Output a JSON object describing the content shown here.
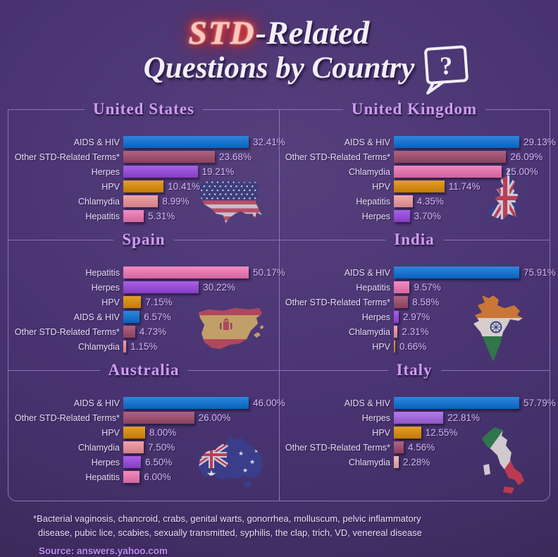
{
  "title": {
    "std": "STD",
    "related": "-Related",
    "line2": "Questions by Country",
    "bubble": "?"
  },
  "footnote": "*Bacterial vaginosis, chancroid, crabs, genital warts, gonorrhea, molluscum, pelvic inflammatory disease, pubic lice, scabies, sexually transmitted, syphilis, the clap, trich, VD, venereal disease",
  "source": "Source: answers.yahoo.com",
  "accent_colors": {
    "background": "#45306f",
    "panel_border": "#8f72bd",
    "panel_title": "#d09cf2",
    "bar_label": "#e9dcf7",
    "bar_value": "#d2b7f2",
    "neon_title": "#ff3b28",
    "source_text": "#bf8df4"
  },
  "chart_data": [
    {
      "type": "bar",
      "orientation": "horizontal",
      "title": "United States",
      "map": "usa",
      "categories": [
        "AIDS & HIV",
        "Other STD-Related Terms*",
        "Herpes",
        "HPV",
        "Chlamydia",
        "Hepatitis"
      ],
      "values": [
        32.41,
        23.68,
        19.21,
        10.41,
        8.99,
        5.31
      ],
      "value_labels": [
        "32.41%",
        "23.68%",
        "19.21%",
        "10.41%",
        "8.99%",
        "5.31%"
      ],
      "colors": [
        "#0b72d9",
        "#a14a6c",
        "#9a46e2",
        "#e08e07",
        "#f2939c",
        "#f378b6"
      ],
      "xlim": [
        0,
        32.41
      ]
    },
    {
      "type": "bar",
      "orientation": "horizontal",
      "title": "United Kingdom",
      "map": "uk",
      "categories": [
        "AIDS & HIV",
        "Other STD-Related Terms*",
        "Chlamydia",
        "HPV",
        "Hepatitis",
        "Herpes"
      ],
      "values": [
        29.13,
        26.09,
        25.0,
        11.74,
        4.35,
        3.7
      ],
      "value_labels": [
        "29.13%",
        "26.09%",
        "25.00%",
        "11.74%",
        "4.35%",
        "3.70%"
      ],
      "colors": [
        "#0b72d9",
        "#a14a6c",
        "#ee74b4",
        "#e08e07",
        "#f49ba1",
        "#9a46e2"
      ],
      "xlim": [
        0,
        29.13
      ]
    },
    {
      "type": "bar",
      "orientation": "horizontal",
      "title": "Spain",
      "map": "spain",
      "categories": [
        "Hepatitis",
        "Herpes",
        "HPV",
        "AIDS & HIV",
        "Other STD-Related Terms*",
        "Chlamydia"
      ],
      "values": [
        50.17,
        30.22,
        7.15,
        6.57,
        4.73,
        1.15
      ],
      "value_labels": [
        "50.17%",
        "30.22%",
        "7.15%",
        "6.57%",
        "4.73%",
        "1.15%"
      ],
      "colors": [
        "#f378b6",
        "#9a46e2",
        "#e08e07",
        "#0b72d9",
        "#a14a6c",
        "#f2939c"
      ],
      "xlim": [
        0,
        50.17
      ]
    },
    {
      "type": "bar",
      "orientation": "horizontal",
      "title": "India",
      "map": "india",
      "categories": [
        "AIDS & HIV",
        "Hepatitis",
        "Other STD-Related Terms*",
        "Herpes",
        "Chlamydia",
        "HPV"
      ],
      "values": [
        75.91,
        9.57,
        8.58,
        2.97,
        2.31,
        0.66
      ],
      "value_labels": [
        "75.91%",
        "9.57%",
        "8.58%",
        "2.97%",
        "2.31%",
        "0.66%"
      ],
      "colors": [
        "#0b72d9",
        "#f378b6",
        "#a14a6c",
        "#9a46e2",
        "#f2939c",
        "#e08e07"
      ],
      "xlim": [
        0,
        75.91
      ]
    },
    {
      "type": "bar",
      "orientation": "horizontal",
      "title": "Australia",
      "map": "australia",
      "categories": [
        "AIDS & HIV",
        "Other STD-Related Terms*",
        "HPV",
        "Chlamydia",
        "Herpes",
        "Hepatitis"
      ],
      "values": [
        46.0,
        26.0,
        8.0,
        7.5,
        6.5,
        6.0
      ],
      "value_labels": [
        "46.00%",
        "26.00%",
        "8.00%",
        "7.50%",
        "6.50%",
        "6.00%"
      ],
      "colors": [
        "#0b72d9",
        "#a14a6c",
        "#e08e07",
        "#f2939c",
        "#9a46e2",
        "#f378b6"
      ],
      "xlim": [
        0,
        46.0
      ]
    },
    {
      "type": "bar",
      "orientation": "horizontal",
      "title": "Italy",
      "map": "italy",
      "categories": [
        "AIDS & HIV",
        "Herpes",
        "HPV",
        "Other STD-Related Terms*",
        "Chlamydia"
      ],
      "values": [
        57.79,
        22.81,
        12.55,
        4.56,
        2.28
      ],
      "value_labels": [
        "57.79%",
        "22.81%",
        "12.55%",
        "4.56%",
        "2.28%"
      ],
      "colors": [
        "#0b72d9",
        "#a763e6",
        "#e08e07",
        "#a14a6c",
        "#eeb0b0"
      ],
      "xlim": [
        0,
        57.79
      ]
    }
  ]
}
